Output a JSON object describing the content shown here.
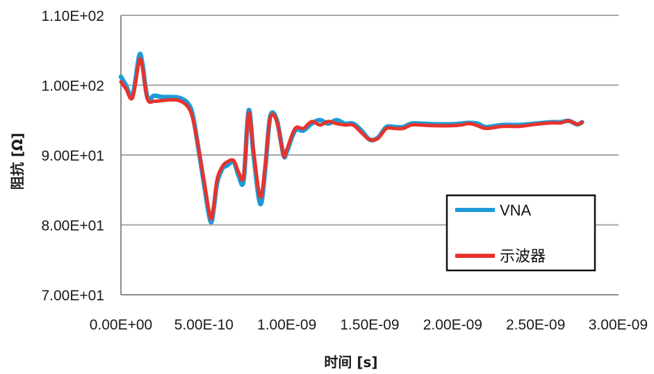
{
  "chart_data": {
    "type": "line",
    "xlabel": "时间 [s]",
    "ylabel": "阻抗 [Ω]",
    "xlim": [
      0,
      3e-09
    ],
    "ylim": [
      70,
      110
    ],
    "x_ticks": [
      0,
      5e-10,
      1e-09,
      1.5e-09,
      2e-09,
      2.5e-09,
      3e-09
    ],
    "x_tick_labels": [
      "0.00E+00",
      "5.00E-10",
      "1.00E-09",
      "1.50E-09",
      "2.00E-09",
      "2.50E-09",
      "3.00E-09"
    ],
    "y_ticks": [
      110,
      100,
      90,
      80,
      70
    ],
    "y_tick_labels": [
      "1.10E+02",
      "1.00E+02",
      "9.00E+01",
      "8.00E+01",
      "7.00E+01"
    ],
    "grid": "horizontal",
    "legend_position": "right",
    "series": [
      {
        "name": "VNA",
        "color": "#1E9BD7",
        "x": [
          0,
          3e-11,
          7e-11,
          1.1e-10,
          1.3e-10,
          1.6e-10,
          2e-10,
          2.5e-10,
          3e-10,
          3.5e-10,
          4e-10,
          4.3e-10,
          4.6e-10,
          5e-10,
          5.4e-10,
          5.6e-10,
          5.8e-10,
          6.1e-10,
          6.4e-10,
          6.8e-10,
          7.1e-10,
          7.4e-10,
          7.7e-10,
          8e-10,
          8.4e-10,
          8.7e-10,
          9e-10,
          9.4e-10,
          9.8e-10,
          1e-09,
          1.05e-09,
          1.1e-09,
          1.15e-09,
          1.2e-09,
          1.25e-09,
          1.3e-09,
          1.35e-09,
          1.4e-09,
          1.45e-09,
          1.5e-09,
          1.55e-09,
          1.6e-09,
          1.65e-09,
          1.7e-09,
          1.75e-09,
          1.8e-09,
          1.9e-09,
          2e-09,
          2.05e-09,
          2.1e-09,
          2.15e-09,
          2.2e-09,
          2.3e-09,
          2.4e-09,
          2.5e-09,
          2.6e-09,
          2.65e-09,
          2.7e-09,
          2.75e-09,
          2.78e-09
        ],
        "y": [
          101.2,
          100.0,
          98.5,
          104.2,
          103.0,
          98.2,
          98.5,
          98.3,
          98.3,
          98.2,
          97.5,
          96.0,
          92.0,
          86.0,
          80.5,
          82.5,
          86.0,
          88.0,
          88.5,
          89.0,
          87.0,
          86.4,
          96.4,
          90.0,
          83.0,
          88.0,
          95.5,
          95.0,
          90.0,
          90.5,
          93.5,
          93.5,
          94.5,
          95.0,
          94.5,
          95.0,
          94.5,
          94.5,
          93.5,
          92.2,
          92.5,
          94.0,
          94.0,
          94.0,
          94.5,
          94.5,
          94.4,
          94.4,
          94.5,
          94.6,
          94.5,
          94.0,
          94.3,
          94.3,
          94.5,
          94.7,
          94.7,
          94.9,
          94.4,
          94.7
        ]
      },
      {
        "name": "示波器",
        "color": "#E8332C",
        "x": [
          0,
          3e-11,
          7e-11,
          1.1e-10,
          1.3e-10,
          1.6e-10,
          2e-10,
          2.5e-10,
          3e-10,
          3.5e-10,
          4e-10,
          4.3e-10,
          4.6e-10,
          5e-10,
          5.4e-10,
          5.6e-10,
          5.8e-10,
          6.1e-10,
          6.4e-10,
          6.8e-10,
          7.1e-10,
          7.4e-10,
          7.7e-10,
          8e-10,
          8.4e-10,
          8.7e-10,
          9e-10,
          9.4e-10,
          9.8e-10,
          1e-09,
          1.05e-09,
          1.1e-09,
          1.15e-09,
          1.2e-09,
          1.25e-09,
          1.3e-09,
          1.35e-09,
          1.4e-09,
          1.45e-09,
          1.5e-09,
          1.55e-09,
          1.6e-09,
          1.65e-09,
          1.7e-09,
          1.75e-09,
          1.8e-09,
          1.9e-09,
          2e-09,
          2.05e-09,
          2.1e-09,
          2.15e-09,
          2.2e-09,
          2.3e-09,
          2.4e-09,
          2.5e-09,
          2.6e-09,
          2.65e-09,
          2.7e-09,
          2.75e-09,
          2.78e-09
        ],
        "y": [
          100.5,
          99.5,
          98.2,
          103.5,
          102.5,
          98.0,
          97.7,
          97.8,
          97.9,
          97.8,
          97.0,
          95.5,
          92.0,
          86.5,
          81.0,
          82.8,
          86.5,
          88.3,
          89.0,
          89.2,
          87.5,
          87.0,
          96.0,
          90.5,
          84.0,
          88.5,
          95.3,
          94.8,
          90.0,
          90.8,
          93.8,
          93.8,
          94.8,
          94.3,
          94.8,
          94.5,
          94.3,
          94.3,
          93.2,
          92.2,
          92.4,
          93.8,
          93.8,
          93.8,
          94.3,
          94.3,
          94.2,
          94.2,
          94.3,
          94.5,
          94.2,
          93.8,
          94.1,
          94.1,
          94.4,
          94.6,
          94.6,
          94.9,
          94.4,
          94.7
        ]
      }
    ]
  }
}
